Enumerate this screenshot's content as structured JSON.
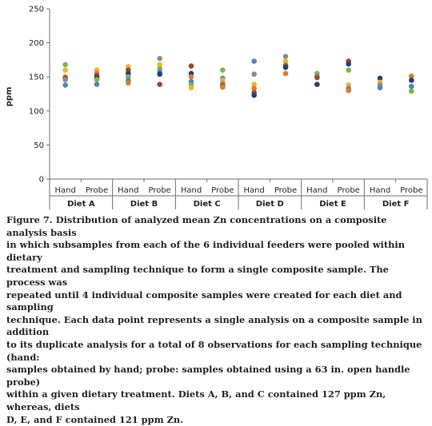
{
  "chart_data": {
    "type": "scatter",
    "ylabel": "ppm",
    "ylim": [
      0,
      250
    ],
    "yticks": [
      0,
      50,
      100,
      150,
      200,
      250
    ],
    "groups": [
      "Diet A",
      "Diet B",
      "Diet C",
      "Diet D",
      "Diet E",
      "Diet F"
    ],
    "techniques": [
      "Hand",
      "Probe"
    ],
    "points": {
      "Diet A": {
        "Hand": [
          {
            "y": 168,
            "color": "#7ab648"
          },
          {
            "y": 160,
            "color": "#f5b324"
          },
          {
            "y": 150,
            "color": "#e07b24"
          },
          {
            "y": 148,
            "color": "#9e4a26"
          },
          {
            "y": 146,
            "color": "#8c8c8c"
          },
          {
            "y": 138,
            "color": "#4a86c5"
          }
        ],
        "Probe": [
          {
            "y": 160,
            "color": "#f5b324"
          },
          {
            "y": 155,
            "color": "#e07b24"
          },
          {
            "y": 152,
            "color": "#9e4a26"
          },
          {
            "y": 149,
            "color": "#233f73"
          },
          {
            "y": 146,
            "color": "#7ab648"
          },
          {
            "y": 139,
            "color": "#4a86c5"
          }
        ]
      },
      "Diet B": {
        "Hand": [
          {
            "y": 165,
            "color": "#f5b324"
          },
          {
            "y": 160,
            "color": "#9e4a26"
          },
          {
            "y": 155,
            "color": "#233f73"
          },
          {
            "y": 150,
            "color": "#7ab648"
          },
          {
            "y": 145,
            "color": "#4a86c5"
          },
          {
            "y": 141,
            "color": "#e07b24"
          }
        ],
        "Probe": [
          {
            "y": 177,
            "color": "#8c8c8c"
          },
          {
            "y": 168,
            "color": "#f5b324"
          },
          {
            "y": 162,
            "color": "#7ab648"
          },
          {
            "y": 157,
            "color": "#4a86c5"
          },
          {
            "y": 154,
            "color": "#233f73"
          },
          {
            "y": 139,
            "color": "#9e4a26"
          }
        ]
      },
      "Diet C": {
        "Hand": [
          {
            "y": 166,
            "color": "#9e4a26"
          },
          {
            "y": 155,
            "color": "#233f73"
          },
          {
            "y": 150,
            "color": "#e07b24"
          },
          {
            "y": 143,
            "color": "#4a86c5"
          },
          {
            "y": 138,
            "color": "#7ab648"
          },
          {
            "y": 134,
            "color": "#f5b324"
          }
        ],
        "Probe": [
          {
            "y": 160,
            "color": "#7ab648"
          },
          {
            "y": 148,
            "color": "#4a86c5"
          },
          {
            "y": 145,
            "color": "#f5b324"
          },
          {
            "y": 140,
            "color": "#8c8c8c"
          },
          {
            "y": 137,
            "color": "#9e4a26"
          },
          {
            "y": 135,
            "color": "#e07b24"
          }
        ]
      },
      "Diet D": {
        "Hand": [
          {
            "y": 173,
            "color": "#4a86c5"
          },
          {
            "y": 154,
            "color": "#8c8c8c"
          },
          {
            "y": 139,
            "color": "#f5b324"
          },
          {
            "y": 133,
            "color": "#e07b24"
          },
          {
            "y": 127,
            "color": "#9e4a26"
          },
          {
            "y": 123,
            "color": "#233f73"
          }
        ],
        "Probe": [
          {
            "y": 180,
            "color": "#8c8c8c"
          },
          {
            "y": 173,
            "color": "#f5b324"
          },
          {
            "y": 168,
            "color": "#7ab648"
          },
          {
            "y": 166,
            "color": "#9e4a26"
          },
          {
            "y": 164,
            "color": "#233f73"
          },
          {
            "y": 155,
            "color": "#e07b24"
          }
        ]
      },
      "Diet E": {
        "Hand": [
          {
            "y": 155,
            "color": "#7ab648"
          },
          {
            "y": 151,
            "color": "#8c8c8c"
          },
          {
            "y": 149,
            "color": "#9e4a26"
          },
          {
            "y": 139,
            "color": "#233f73"
          }
        ],
        "Probe": [
          {
            "y": 173,
            "color": "#9e4a26"
          },
          {
            "y": 169,
            "color": "#233f73"
          },
          {
            "y": 160,
            "color": "#7ab648"
          },
          {
            "y": 138,
            "color": "#f5b324"
          },
          {
            "y": 133,
            "color": "#4a86c5"
          },
          {
            "y": 130,
            "color": "#e07b24"
          }
        ]
      },
      "Diet F": {
        "Hand": [
          {
            "y": 148,
            "color": "#233f73"
          },
          {
            "y": 142,
            "color": "#f5b324"
          },
          {
            "y": 138,
            "color": "#8c8c8c"
          },
          {
            "y": 134,
            "color": "#4a86c5"
          }
        ],
        "Probe": [
          {
            "y": 151,
            "color": "#e07b24"
          },
          {
            "y": 145,
            "color": "#233f73"
          },
          {
            "y": 136,
            "color": "#4a86c5"
          },
          {
            "y": 129,
            "color": "#7ab648"
          }
        ]
      }
    }
  },
  "caption_lines": [
    "Figure 7. Distribution of analyzed mean Zn concentrations on a composite analysis basis",
    "in which subsamples from each of the 6 individual feeders were pooled within dietary",
    "treatment and sampling technique to form a single composite sample. The process was",
    "repeated until 4 individual composite samples were created for each diet and sampling",
    "technique. Each data point represents a single analysis on a composite sample in addition",
    "to its duplicate analysis for a total of 8 observations for each sampling technique (hand:",
    "samples obtained by hand; probe: samples obtained using a 63 in. open handle probe)",
    "within a given dietary treatment. Diets A, B, and C contained 127 ppm Zn, whereas, diets",
    "D, E, and F contained 121 ppm Zn."
  ]
}
